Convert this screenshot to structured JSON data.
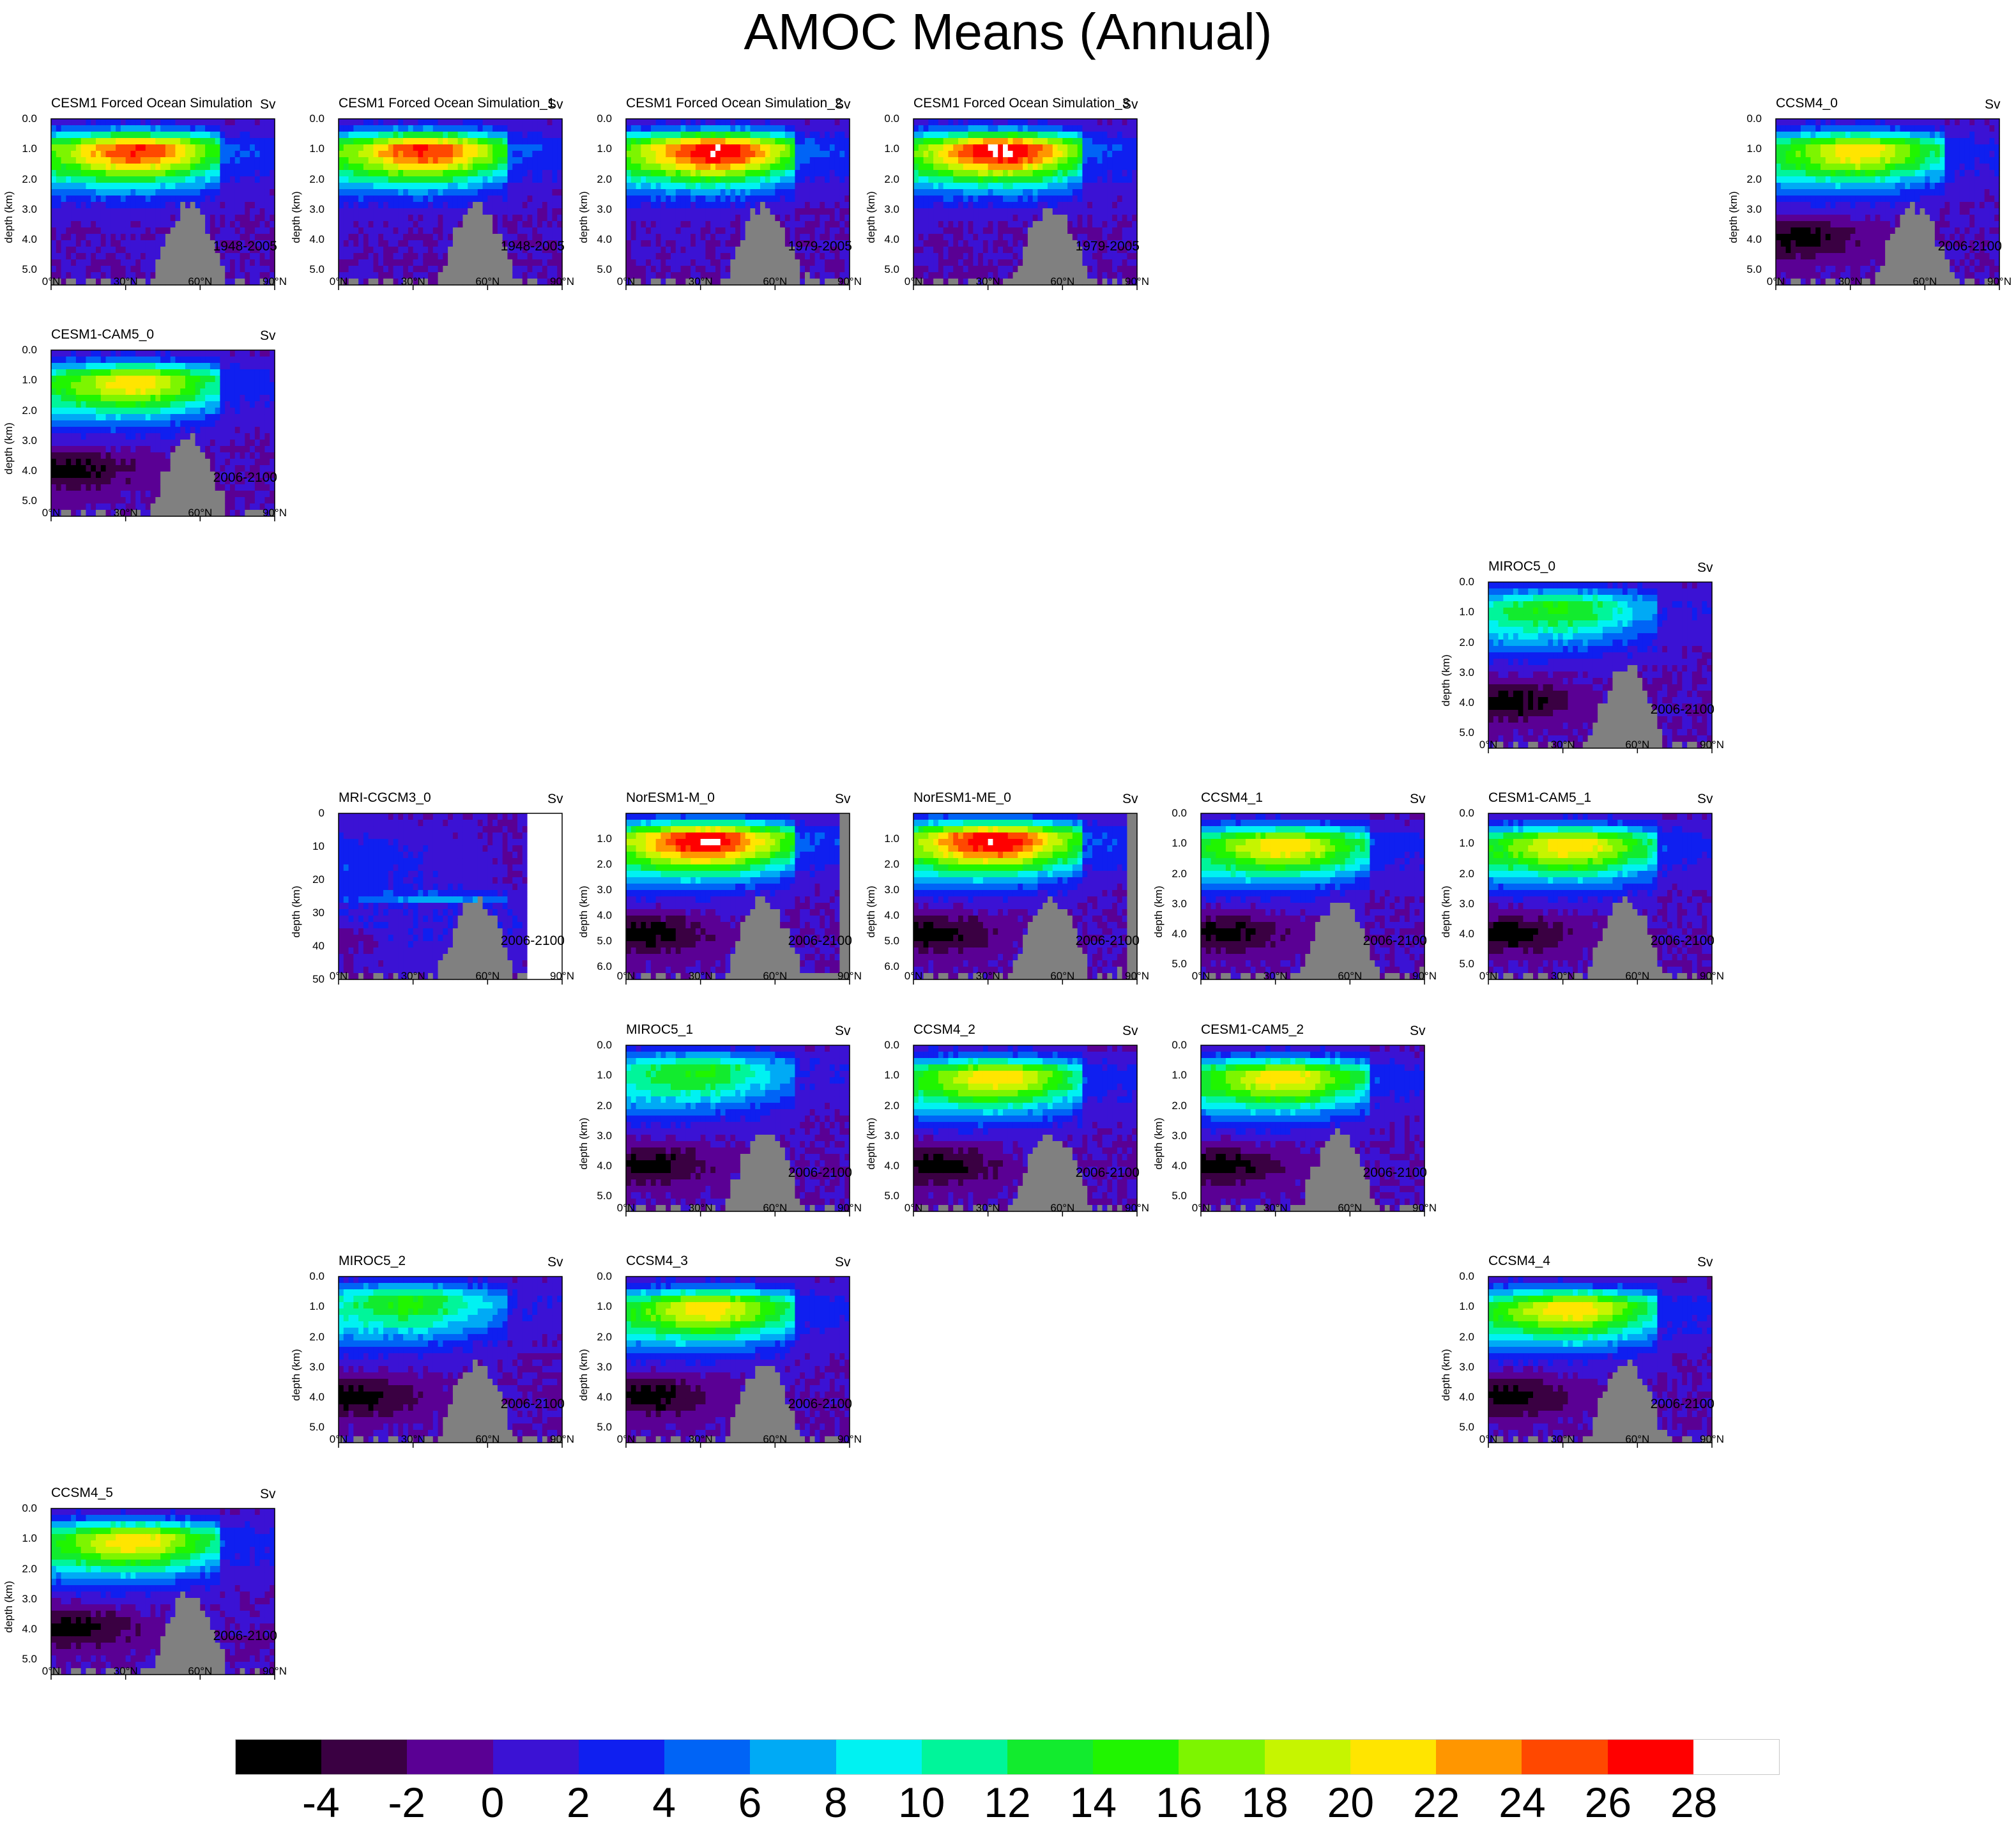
{
  "title": "AMOC Means (Annual)",
  "units": "Sv",
  "depth_axis_label": "depth (km)",
  "lat_ticks": [
    "0°N",
    "30°N",
    "60°N",
    "90°N"
  ],
  "colors": {
    "land_mask": "#808080",
    "levels": [
      "#000000",
      "#3a0042",
      "#5a0094",
      "#3b12d4",
      "#0f1ff0",
      "#0064f6",
      "#00aaf5",
      "#00f2f2",
      "#00f59a",
      "#12eb2e",
      "#20f500",
      "#7df500",
      "#c6f500",
      "#ffe500",
      "#ff9600",
      "#ff4800",
      "#ff0000",
      "#ffffff"
    ]
  },
  "colorbar": {
    "tick_labels": [
      "-4",
      "-2",
      "0",
      "2",
      "4",
      "6",
      "8",
      "10",
      "12",
      "14",
      "16",
      "18",
      "20",
      "22",
      "24",
      "26",
      "28"
    ]
  },
  "chart_data": [
    {
      "type": "heatmap",
      "title": "CESM1 Forced Ocean Simulation",
      "units": "Sv",
      "period": "1948-2005",
      "ylabel": "depth (km)",
      "y_ticks": [
        "0.0",
        "1.0",
        "2.0",
        "3.0",
        "4.0",
        "5.0"
      ],
      "ylim": [
        0,
        5.5
      ],
      "xlim": [
        0,
        90
      ],
      "max_sv": 25,
      "core_lat": 36,
      "core_depth": 1.0,
      "deep_cell": false,
      "land_limit": null
    },
    {
      "type": "heatmap",
      "title": "CESM1 Forced Ocean Simulation_1",
      "units": "Sv",
      "period": "1948-2005",
      "ylabel": "depth (km)",
      "y_ticks": [
        "0.0",
        "1.0",
        "2.0",
        "3.0",
        "4.0",
        "5.0"
      ],
      "ylim": [
        0,
        5.5
      ],
      "xlim": [
        0,
        90
      ],
      "max_sv": 25,
      "core_lat": 36,
      "core_depth": 1.0,
      "deep_cell": false,
      "land_limit": null
    },
    {
      "type": "heatmap",
      "title": "CESM1 Forced Ocean Simulation_2",
      "units": "Sv",
      "period": "1979-2005",
      "ylabel": "depth (km)",
      "y_ticks": [
        "0.0",
        "1.0",
        "2.0",
        "3.0",
        "4.0",
        "5.0"
      ],
      "ylim": [
        0,
        5.5
      ],
      "xlim": [
        0,
        90
      ],
      "max_sv": 27,
      "core_lat": 37,
      "core_depth": 1.0,
      "deep_cell": false,
      "land_limit": null
    },
    {
      "type": "heatmap",
      "title": "CESM1 Forced Ocean Simulation_3",
      "units": "Sv",
      "period": "1979-2005",
      "ylabel": "depth (km)",
      "y_ticks": [
        "0.0",
        "1.0",
        "2.0",
        "3.0",
        "4.0",
        "5.0"
      ],
      "ylim": [
        0,
        5.5
      ],
      "xlim": [
        0,
        90
      ],
      "max_sv": 27,
      "core_lat": 37,
      "core_depth": 1.0,
      "deep_cell": false,
      "land_limit": null
    },
    {
      "type": "heatmap",
      "title": "CCSM4_0",
      "units": "Sv",
      "period": "2006-2100",
      "ylabel": "depth (km)",
      "y_ticks": [
        "0.0",
        "1.0",
        "2.0",
        "3.0",
        "4.0",
        "5.0"
      ],
      "ylim": [
        0,
        5.5
      ],
      "xlim": [
        0,
        90
      ],
      "max_sv": 20,
      "core_lat": 35,
      "core_depth": 1.0,
      "deep_cell": true,
      "land_limit": null
    },
    {
      "type": "heatmap",
      "title": "CESM1-CAM5_0",
      "units": "Sv",
      "period": "2006-2100",
      "ylabel": "depth (km)",
      "y_ticks": [
        "0.0",
        "1.0",
        "2.0",
        "3.0",
        "4.0",
        "5.0"
      ],
      "ylim": [
        0,
        5.5
      ],
      "xlim": [
        0,
        90
      ],
      "max_sv": 20,
      "core_lat": 35,
      "core_depth": 1.0,
      "deep_cell": true,
      "land_limit": null
    },
    {
      "type": "heatmap",
      "title": "MIROC5_0",
      "units": "Sv",
      "period": "2006-2100",
      "ylabel": "depth (km)",
      "y_ticks": [
        "0.0",
        "1.0",
        "2.0",
        "3.0",
        "4.0",
        "5.0"
      ],
      "ylim": [
        0,
        5.5
      ],
      "xlim": [
        0,
        90
      ],
      "max_sv": 13,
      "core_lat": 30,
      "core_depth": 0.8,
      "deep_cell": true,
      "land_limit": null
    },
    {
      "type": "heatmap",
      "title": "MRI-CGCM3_0",
      "units": "Sv",
      "period": "2006-2100",
      "ylabel": "depth (km)",
      "y_ticks": [
        "0",
        "10",
        "20",
        "30",
        "40",
        "50"
      ],
      "ylim": [
        0,
        50
      ],
      "xlim": [
        0,
        90
      ],
      "max_sv": 12,
      "core_lat": 40,
      "core_depth": 30,
      "deep_cell": true,
      "land_limit": 75
    },
    {
      "type": "heatmap",
      "title": "NorESM1-M_0",
      "units": "Sv",
      "period": "2006-2100",
      "ylabel": "depth (km)",
      "y_ticks": [
        "1.0",
        "2.0",
        "3.0",
        "4.0",
        "5.0",
        "6.0"
      ],
      "ylim": [
        0,
        6.5
      ],
      "xlim": [
        0,
        90
      ],
      "max_sv": 27,
      "core_lat": 33,
      "core_depth": 1.0,
      "deep_cell": true,
      "land_limit": 85
    },
    {
      "type": "heatmap",
      "title": "NorESM1-ME_0",
      "units": "Sv",
      "period": "2006-2100",
      "ylabel": "depth (km)",
      "y_ticks": [
        "1.0",
        "2.0",
        "3.0",
        "4.0",
        "5.0",
        "6.0"
      ],
      "ylim": [
        0,
        6.5
      ],
      "xlim": [
        0,
        90
      ],
      "max_sv": 27,
      "core_lat": 33,
      "core_depth": 1.0,
      "deep_cell": true,
      "land_limit": 85
    },
    {
      "type": "heatmap",
      "title": "CCSM4_1",
      "units": "Sv",
      "period": "2006-2100",
      "ylabel": "depth (km)",
      "y_ticks": [
        "0.0",
        "1.0",
        "2.0",
        "3.0",
        "4.0",
        "5.0"
      ],
      "ylim": [
        0,
        5.5
      ],
      "xlim": [
        0,
        90
      ],
      "max_sv": 20,
      "core_lat": 35,
      "core_depth": 1.0,
      "deep_cell": true,
      "land_limit": null
    },
    {
      "type": "heatmap",
      "title": "CESM1-CAM5_1",
      "units": "Sv",
      "period": "2006-2100",
      "ylabel": "depth (km)",
      "y_ticks": [
        "0.0",
        "1.0",
        "2.0",
        "3.0",
        "4.0",
        "5.0"
      ],
      "ylim": [
        0,
        5.5
      ],
      "xlim": [
        0,
        90
      ],
      "max_sv": 20,
      "core_lat": 35,
      "core_depth": 1.0,
      "deep_cell": true,
      "land_limit": null
    },
    {
      "type": "heatmap",
      "title": "MIROC5_1",
      "units": "Sv",
      "period": "2006-2100",
      "ylabel": "depth (km)",
      "y_ticks": [
        "0.0",
        "1.0",
        "2.0",
        "3.0",
        "4.0",
        "5.0"
      ],
      "ylim": [
        0,
        5.5
      ],
      "xlim": [
        0,
        90
      ],
      "max_sv": 13,
      "core_lat": 30,
      "core_depth": 0.8,
      "deep_cell": true,
      "land_limit": null
    },
    {
      "type": "heatmap",
      "title": "CCSM4_2",
      "units": "Sv",
      "period": "2006-2100",
      "ylabel": "depth (km)",
      "y_ticks": [
        "0.0",
        "1.0",
        "2.0",
        "3.0",
        "4.0",
        "5.0"
      ],
      "ylim": [
        0,
        5.5
      ],
      "xlim": [
        0,
        90
      ],
      "max_sv": 20,
      "core_lat": 35,
      "core_depth": 1.0,
      "deep_cell": true,
      "land_limit": null
    },
    {
      "type": "heatmap",
      "title": "CESM1-CAM5_2",
      "units": "Sv",
      "period": "2006-2100",
      "ylabel": "depth (km)",
      "y_ticks": [
        "0.0",
        "1.0",
        "2.0",
        "3.0",
        "4.0",
        "5.0"
      ],
      "ylim": [
        0,
        5.5
      ],
      "xlim": [
        0,
        90
      ],
      "max_sv": 20,
      "core_lat": 35,
      "core_depth": 1.0,
      "deep_cell": true,
      "land_limit": null
    },
    {
      "type": "heatmap",
      "title": "MIROC5_2",
      "units": "Sv",
      "period": "2006-2100",
      "ylabel": "depth (km)",
      "y_ticks": [
        "0.0",
        "1.0",
        "2.0",
        "3.0",
        "4.0",
        "5.0"
      ],
      "ylim": [
        0,
        5.5
      ],
      "xlim": [
        0,
        90
      ],
      "max_sv": 13,
      "core_lat": 30,
      "core_depth": 0.8,
      "deep_cell": true,
      "land_limit": null
    },
    {
      "type": "heatmap",
      "title": "CCSM4_3",
      "units": "Sv",
      "period": "2006-2100",
      "ylabel": "depth (km)",
      "y_ticks": [
        "0.0",
        "1.0",
        "2.0",
        "3.0",
        "4.0",
        "5.0"
      ],
      "ylim": [
        0,
        5.5
      ],
      "xlim": [
        0,
        90
      ],
      "max_sv": 20,
      "core_lat": 35,
      "core_depth": 1.0,
      "deep_cell": true,
      "land_limit": null
    },
    {
      "type": "heatmap",
      "title": "CCSM4_4",
      "units": "Sv",
      "period": "2006-2100",
      "ylabel": "depth (km)",
      "y_ticks": [
        "0.0",
        "1.0",
        "2.0",
        "3.0",
        "4.0",
        "5.0"
      ],
      "ylim": [
        0,
        5.5
      ],
      "xlim": [
        0,
        90
      ],
      "max_sv": 20,
      "core_lat": 35,
      "core_depth": 1.0,
      "deep_cell": true,
      "land_limit": null
    },
    {
      "type": "heatmap",
      "title": "CCSM4_5",
      "units": "Sv",
      "period": "2006-2100",
      "ylabel": "depth (km)",
      "y_ticks": [
        "0.0",
        "1.0",
        "2.0",
        "3.0",
        "4.0",
        "5.0"
      ],
      "ylim": [
        0,
        5.5
      ],
      "xlim": [
        0,
        90
      ],
      "max_sv": 20,
      "core_lat": 35,
      "core_depth": 1.0,
      "deep_cell": true,
      "land_limit": null
    }
  ]
}
